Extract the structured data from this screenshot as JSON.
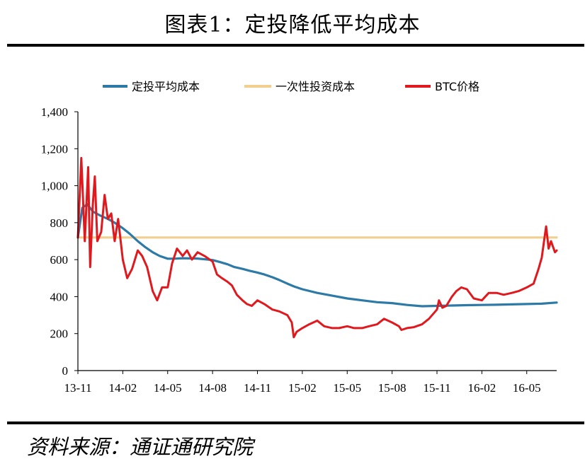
{
  "header": {
    "title": "图表1：定投降低平均成本"
  },
  "footer": {
    "source": "资料来源：通证通研究院"
  },
  "colors": {
    "dca": "#2e7aa6",
    "lump": "#f2cf8f",
    "btc": "#e0191e",
    "axis": "#000000"
  },
  "chart_data": {
    "type": "line",
    "title": "",
    "xlabel": "",
    "ylabel": "",
    "ylim": [
      0,
      1400
    ],
    "yticks": [
      0,
      200,
      400,
      600,
      800,
      1000,
      1200,
      1400
    ],
    "ytick_labels": [
      "0",
      "200",
      "400",
      "600",
      "800",
      "1,000",
      "1,200",
      "1,400"
    ],
    "xtick_labels": [
      "13-11",
      "14-02",
      "14-05",
      "14-08",
      "14-11",
      "15-02",
      "15-05",
      "15-08",
      "15-11",
      "16-02",
      "16-05"
    ],
    "xlim": [
      "2013-11",
      "2016-07"
    ],
    "legend_position": "top",
    "grid": false,
    "series": [
      {
        "name": "定投平均成本",
        "color": "#2e7aa6",
        "x": [
          "2013-11-01",
          "2013-11-10",
          "2013-11-20",
          "2013-12-01",
          "2013-12-15",
          "2014-01-01",
          "2014-01-15",
          "2014-02-01",
          "2014-02-15",
          "2014-03-01",
          "2014-03-15",
          "2014-04-01",
          "2014-04-15",
          "2014-05-01",
          "2014-05-15",
          "2014-06-01",
          "2014-07-01",
          "2014-08-01",
          "2014-08-15",
          "2014-09-01",
          "2014-09-15",
          "2014-10-01",
          "2014-10-15",
          "2014-11-01",
          "2014-11-15",
          "2014-12-01",
          "2014-12-15",
          "2015-01-01",
          "2015-01-15",
          "2015-02-01",
          "2015-03-01",
          "2015-04-01",
          "2015-05-01",
          "2015-06-01",
          "2015-07-01",
          "2015-08-01",
          "2015-09-01",
          "2015-10-01",
          "2015-11-01",
          "2015-12-01",
          "2016-01-01",
          "2016-02-01",
          "2016-03-01",
          "2016-04-01",
          "2016-05-01",
          "2016-06-01",
          "2016-07-01"
        ],
        "values": [
          720,
          880,
          900,
          860,
          840,
          820,
          800,
          770,
          740,
          700,
          670,
          640,
          620,
          605,
          605,
          608,
          606,
          598,
          588,
          575,
          560,
          550,
          540,
          530,
          520,
          505,
          490,
          470,
          455,
          440,
          420,
          405,
          390,
          380,
          370,
          365,
          355,
          348,
          350,
          352,
          354,
          355,
          356,
          358,
          360,
          362,
          368
        ]
      },
      {
        "name": "一次性投资成本",
        "color": "#f2cf8f",
        "x": [
          "2013-11-01",
          "2016-07-01"
        ],
        "values": [
          720,
          720
        ]
      },
      {
        "name": "BTC价格",
        "color": "#e0191e",
        "x": [
          "2013-11-01",
          "2013-11-08",
          "2013-11-15",
          "2013-11-22",
          "2013-11-26",
          "2013-12-01",
          "2013-12-05",
          "2013-12-10",
          "2013-12-18",
          "2013-12-25",
          "2014-01-01",
          "2014-01-08",
          "2014-01-15",
          "2014-01-22",
          "2014-02-01",
          "2014-02-10",
          "2014-02-20",
          "2014-03-01",
          "2014-03-10",
          "2014-03-20",
          "2014-04-01",
          "2014-04-10",
          "2014-04-20",
          "2014-05-01",
          "2014-05-10",
          "2014-05-20",
          "2014-06-01",
          "2014-06-10",
          "2014-06-20",
          "2014-07-01",
          "2014-07-15",
          "2014-08-01",
          "2014-08-10",
          "2014-08-20",
          "2014-09-01",
          "2014-09-10",
          "2014-09-20",
          "2014-10-01",
          "2014-10-10",
          "2014-10-20",
          "2014-11-01",
          "2014-11-15",
          "2014-12-01",
          "2014-12-15",
          "2015-01-01",
          "2015-01-10",
          "2015-01-14",
          "2015-01-20",
          "2015-02-01",
          "2015-02-15",
          "2015-03-01",
          "2015-03-15",
          "2015-04-01",
          "2015-04-15",
          "2015-05-01",
          "2015-05-15",
          "2015-06-01",
          "2015-06-15",
          "2015-07-01",
          "2015-07-15",
          "2015-08-01",
          "2015-08-15",
          "2015-08-20",
          "2015-09-01",
          "2015-09-15",
          "2015-10-01",
          "2015-10-15",
          "2015-11-01",
          "2015-11-05",
          "2015-11-12",
          "2015-11-20",
          "2015-12-01",
          "2015-12-10",
          "2015-12-20",
          "2016-01-01",
          "2016-01-15",
          "2016-02-01",
          "2016-02-15",
          "2016-03-01",
          "2016-03-15",
          "2016-04-01",
          "2016-04-15",
          "2016-05-01",
          "2016-05-15",
          "2016-05-25",
          "2016-06-01",
          "2016-06-10",
          "2016-06-15",
          "2016-06-20",
          "2016-06-28",
          "2016-07-01"
        ],
        "values": [
          720,
          1150,
          700,
          1100,
          560,
          900,
          1050,
          700,
          750,
          950,
          820,
          850,
          700,
          820,
          600,
          500,
          550,
          650,
          620,
          560,
          430,
          380,
          450,
          450,
          580,
          660,
          620,
          650,
          600,
          640,
          620,
          590,
          520,
          500,
          480,
          460,
          410,
          380,
          360,
          350,
          380,
          360,
          330,
          320,
          300,
          260,
          180,
          210,
          230,
          250,
          270,
          240,
          230,
          230,
          240,
          230,
          230,
          240,
          250,
          280,
          260,
          240,
          220,
          230,
          235,
          250,
          280,
          330,
          380,
          340,
          350,
          400,
          430,
          450,
          440,
          390,
          380,
          420,
          420,
          410,
          420,
          430,
          450,
          470,
          550,
          610,
          780,
          660,
          700,
          640,
          650
        ]
      }
    ]
  }
}
